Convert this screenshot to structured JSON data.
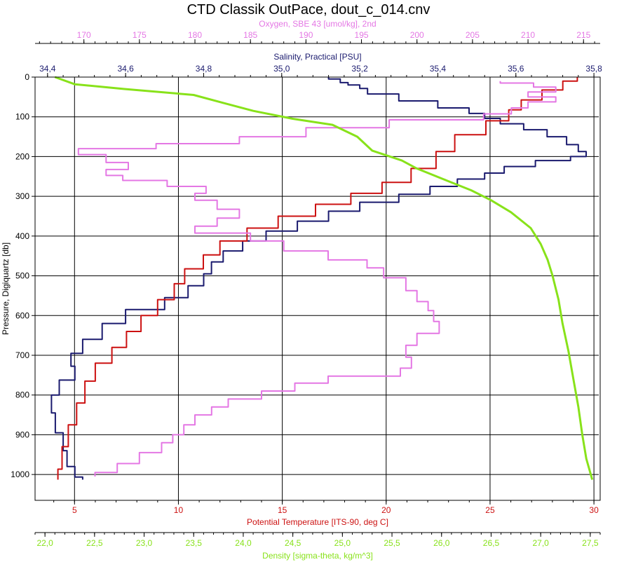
{
  "chart_data": {
    "type": "line",
    "title": "CTD Classik OutPace, dout_c_014.cnv",
    "ylabel": "Pressure, Digiquartz [db]",
    "ylim": [
      1065,
      0
    ],
    "yticks": [
      0,
      100,
      200,
      300,
      400,
      500,
      600,
      700,
      800,
      900,
      1000
    ],
    "grid": true,
    "axes": {
      "oxygen": {
        "label": "Oxygen, SBE 43 [umol/kg], 2nd",
        "range": [
          165.6,
          216.5
        ],
        "ticks": [
          170,
          175,
          180,
          185,
          190,
          195,
          200,
          205,
          210,
          215
        ],
        "color": "#e477e4",
        "position": "top"
      },
      "salinity": {
        "label": "Salinity, Practical [PSU]",
        "range": [
          34.368,
          35.816
        ],
        "ticks": [
          34.4,
          34.6,
          34.8,
          35.0,
          35.2,
          35.4,
          35.6,
          35.8
        ],
        "tick_labels": [
          "34,4",
          "34,6",
          "34,8",
          "35,0",
          "35,2",
          "35,4",
          "35,6",
          "35,8"
        ],
        "color": "#1a1a6e",
        "position": "top"
      },
      "temperature": {
        "label": "Potential Temperature [ITS-90, deg C]",
        "range": [
          3.1,
          30.3
        ],
        "ticks": [
          5,
          10,
          15,
          20,
          25,
          30
        ],
        "color": "#cc1111",
        "position": "bottom"
      },
      "density": {
        "label": "Density [sigma-theta, kg/m^3]",
        "range": [
          21.9,
          27.6
        ],
        "ticks": [
          22.0,
          22.5,
          23.0,
          23.5,
          24.0,
          24.5,
          25.0,
          25.5,
          26.0,
          26.5,
          27.0,
          27.5
        ],
        "tick_labels": [
          "22,0",
          "22,5",
          "23,0",
          "23,5",
          "24,0",
          "24,5",
          "25,0",
          "25,5",
          "26,0",
          "26,5",
          "27,0",
          "27,5"
        ],
        "color": "#88e21a",
        "position": "bottom"
      }
    },
    "series": [
      {
        "name": "Salinity, Practical [PSU]",
        "axis": "salinity",
        "color": "#1a1a6e",
        "points": [
          [
            35.12,
            0
          ],
          [
            35.15,
            10
          ],
          [
            35.17,
            18
          ],
          [
            35.2,
            22
          ],
          [
            35.22,
            35
          ],
          [
            35.3,
            50
          ],
          [
            35.4,
            70
          ],
          [
            35.48,
            85
          ],
          [
            35.52,
            98
          ],
          [
            35.56,
            110
          ],
          [
            35.62,
            125
          ],
          [
            35.68,
            140
          ],
          [
            35.73,
            160
          ],
          [
            35.76,
            180
          ],
          [
            35.78,
            195
          ],
          [
            35.74,
            205
          ],
          [
            35.65,
            215
          ],
          [
            35.57,
            235
          ],
          [
            35.52,
            248
          ],
          [
            35.45,
            265
          ],
          [
            35.38,
            285
          ],
          [
            35.3,
            305
          ],
          [
            35.2,
            325
          ],
          [
            35.12,
            350
          ],
          [
            35.04,
            375
          ],
          [
            34.96,
            400
          ],
          [
            34.9,
            425
          ],
          [
            34.85,
            450
          ],
          [
            34.82,
            480
          ],
          [
            34.8,
            510
          ],
          [
            34.76,
            540
          ],
          [
            34.7,
            570
          ],
          [
            34.6,
            600
          ],
          [
            34.54,
            640
          ],
          [
            34.49,
            680
          ],
          [
            34.46,
            710
          ],
          [
            34.47,
            745
          ],
          [
            34.43,
            780
          ],
          [
            34.41,
            820
          ],
          [
            34.42,
            870
          ],
          [
            34.44,
            920
          ],
          [
            34.45,
            960
          ],
          [
            34.47,
            1000
          ],
          [
            34.49,
            1013
          ]
        ]
      },
      {
        "name": "Potential Temperature [ITS-90, deg C]",
        "axis": "temperature",
        "color": "#cc1111",
        "points": [
          [
            29.2,
            0
          ],
          [
            28.5,
            20
          ],
          [
            27.5,
            45
          ],
          [
            26.5,
            70
          ],
          [
            25.9,
            95
          ],
          [
            24.8,
            125
          ],
          [
            23.3,
            165
          ],
          [
            22.4,
            210
          ],
          [
            21.2,
            250
          ],
          [
            19.8,
            280
          ],
          [
            18.3,
            305
          ],
          [
            16.6,
            335
          ],
          [
            14.8,
            365
          ],
          [
            13.3,
            395
          ],
          [
            12.0,
            430
          ],
          [
            11.2,
            465
          ],
          [
            10.3,
            500
          ],
          [
            9.8,
            540
          ],
          [
            9.0,
            580
          ],
          [
            8.2,
            620
          ],
          [
            7.5,
            660
          ],
          [
            6.8,
            700
          ],
          [
            6.0,
            740
          ],
          [
            5.5,
            790
          ],
          [
            5.1,
            850
          ],
          [
            4.7,
            900
          ],
          [
            4.4,
            960
          ],
          [
            4.2,
            1013
          ]
        ]
      },
      {
        "name": "Oxygen, SBE 43 [umol/kg], 2nd",
        "axis": "oxygen",
        "color": "#e477e4",
        "points": [
          [
            207.5,
            10
          ],
          [
            210.5,
            20
          ],
          [
            212.5,
            30
          ],
          [
            210.0,
            45
          ],
          [
            212.5,
            55
          ],
          [
            210.0,
            70
          ],
          [
            208.5,
            85
          ],
          [
            206.0,
            100
          ],
          [
            197.5,
            115
          ],
          [
            190.0,
            140
          ],
          [
            184.0,
            160
          ],
          [
            176.5,
            175
          ],
          [
            169.5,
            185
          ],
          [
            172.0,
            205
          ],
          [
            174.0,
            225
          ],
          [
            172.0,
            240
          ],
          [
            173.5,
            255
          ],
          [
            177.5,
            265
          ],
          [
            181.0,
            285
          ],
          [
            180.0,
            300
          ],
          [
            182.0,
            320
          ],
          [
            184.0,
            345
          ],
          [
            182.0,
            365
          ],
          [
            180.0,
            385
          ],
          [
            185.0,
            400
          ],
          [
            188.0,
            425
          ],
          [
            192.0,
            450
          ],
          [
            195.5,
            470
          ],
          [
            197.0,
            490
          ],
          [
            199.0,
            520
          ],
          [
            200.0,
            555
          ],
          [
            201.0,
            575
          ],
          [
            201.5,
            600
          ],
          [
            202.0,
            630
          ],
          [
            200.0,
            660
          ],
          [
            199.0,
            690
          ],
          [
            199.5,
            720
          ],
          [
            198.5,
            745
          ],
          [
            192.0,
            760
          ],
          [
            189.0,
            780
          ],
          [
            186.0,
            800
          ],
          [
            183.0,
            820
          ],
          [
            181.5,
            840
          ],
          [
            180.0,
            860
          ],
          [
            179.0,
            890
          ],
          [
            178.0,
            910
          ],
          [
            177.0,
            930
          ],
          [
            175.0,
            960
          ],
          [
            173.0,
            985
          ],
          [
            171.0,
            1005
          ]
        ]
      },
      {
        "name": "Density [sigma-theta, kg/m^3]",
        "axis": "density",
        "color": "#88e21a",
        "points": [
          [
            22.1,
            0
          ],
          [
            22.3,
            18
          ],
          [
            22.8,
            30
          ],
          [
            23.5,
            45
          ],
          [
            23.8,
            65
          ],
          [
            24.1,
            85
          ],
          [
            24.5,
            105
          ],
          [
            24.9,
            120
          ],
          [
            25.15,
            150
          ],
          [
            25.3,
            185
          ],
          [
            25.6,
            210
          ],
          [
            25.75,
            230
          ],
          [
            26.05,
            260
          ],
          [
            26.3,
            285
          ],
          [
            26.5,
            310
          ],
          [
            26.7,
            340
          ],
          [
            26.9,
            380
          ],
          [
            27.0,
            420
          ],
          [
            27.07,
            460
          ],
          [
            27.12,
            500
          ],
          [
            27.18,
            560
          ],
          [
            27.22,
            620
          ],
          [
            27.28,
            690
          ],
          [
            27.33,
            760
          ],
          [
            27.38,
            830
          ],
          [
            27.42,
            900
          ],
          [
            27.46,
            960
          ],
          [
            27.52,
            1013
          ]
        ]
      }
    ]
  }
}
